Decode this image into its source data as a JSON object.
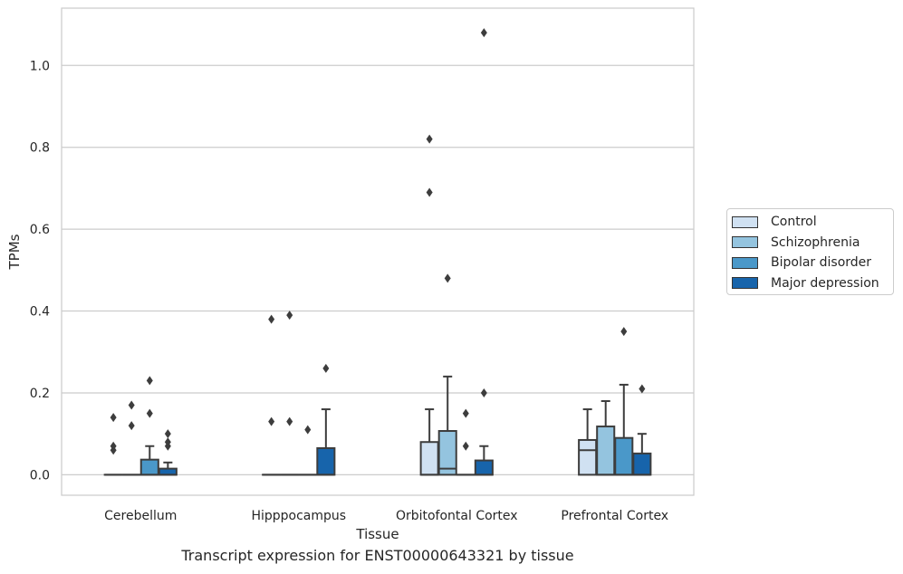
{
  "chart_data": {
    "type": "box",
    "xlabel": "Tissue",
    "ylabel": "TPMs",
    "ylim": [
      -0.05,
      1.14
    ],
    "yticks": [
      0.0,
      0.2,
      0.4,
      0.6,
      0.8,
      1.0
    ],
    "ytick_labels": [
      "0.0",
      "0.2",
      "0.4",
      "0.6",
      "0.8",
      "1.0"
    ],
    "categories": [
      "Cerebellum",
      "Hipppocampus",
      "Orbitofontal Cortex",
      "Prefrontal Cortex"
    ],
    "grid": "horizontal",
    "legend_position": "right",
    "series": [
      {
        "name": "Control",
        "color": "#d0e1f2",
        "boxes": [
          {
            "q1": 0,
            "median": 0,
            "q3": 0,
            "whisker_low": 0,
            "whisker_high": 0,
            "outliers": [
              0.14,
              0.07,
              0.06
            ]
          },
          {
            "q1": 0,
            "median": 0,
            "q3": 0,
            "whisker_low": 0,
            "whisker_high": 0,
            "outliers": [
              0.38,
              0.13
            ]
          },
          {
            "q1": 0,
            "median": 0,
            "q3": 0.08,
            "whisker_low": 0,
            "whisker_high": 0.16,
            "outliers": [
              0.82,
              0.69
            ]
          },
          {
            "q1": 0,
            "median": 0.06,
            "q3": 0.085,
            "whisker_low": 0,
            "whisker_high": 0.16,
            "outliers": []
          }
        ]
      },
      {
        "name": "Schizophrenia",
        "color": "#94c4df",
        "boxes": [
          {
            "q1": 0,
            "median": 0,
            "q3": 0,
            "whisker_low": 0,
            "whisker_high": 0,
            "outliers": [
              0.17,
              0.12
            ]
          },
          {
            "q1": 0,
            "median": 0,
            "q3": 0,
            "whisker_low": 0,
            "whisker_high": 0,
            "outliers": [
              0.39,
              0.13
            ]
          },
          {
            "q1": 0,
            "median": 0.015,
            "q3": 0.107,
            "whisker_low": 0,
            "whisker_high": 0.24,
            "outliers": [
              0.48
            ]
          },
          {
            "q1": 0,
            "median": 0,
            "q3": 0.118,
            "whisker_low": 0,
            "whisker_high": 0.18,
            "outliers": []
          }
        ]
      },
      {
        "name": "Bipolar disorder",
        "color": "#4a98c9",
        "boxes": [
          {
            "q1": 0,
            "median": 0,
            "q3": 0.037,
            "whisker_low": 0,
            "whisker_high": 0.07,
            "outliers": [
              0.23,
              0.15
            ]
          },
          {
            "q1": 0,
            "median": 0,
            "q3": 0,
            "whisker_low": 0,
            "whisker_high": 0,
            "outliers": [
              0.11
            ]
          },
          {
            "q1": 0,
            "median": 0,
            "q3": 0,
            "whisker_low": 0,
            "whisker_high": 0,
            "outliers": [
              0.15,
              0.07
            ]
          },
          {
            "q1": 0,
            "median": 0,
            "q3": 0.09,
            "whisker_low": 0,
            "whisker_high": 0.22,
            "outliers": [
              0.35
            ]
          }
        ]
      },
      {
        "name": "Major depression",
        "color": "#1764ab",
        "boxes": [
          {
            "q1": 0,
            "median": 0,
            "q3": 0.015,
            "whisker_low": 0,
            "whisker_high": 0.03,
            "outliers": [
              0.1,
              0.08,
              0.07
            ]
          },
          {
            "q1": 0,
            "median": 0,
            "q3": 0.065,
            "whisker_low": 0,
            "whisker_high": 0.16,
            "outliers": [
              0.26
            ]
          },
          {
            "q1": 0,
            "median": 0,
            "q3": 0.035,
            "whisker_low": 0,
            "whisker_high": 0.07,
            "outliers": [
              1.08,
              0.2
            ]
          },
          {
            "q1": 0,
            "median": 0,
            "q3": 0.052,
            "whisker_low": 0,
            "whisker_high": 0.1,
            "outliers": [
              0.21
            ]
          }
        ]
      }
    ]
  },
  "caption": "Transcript expression for ENST00000643321 by tissue"
}
